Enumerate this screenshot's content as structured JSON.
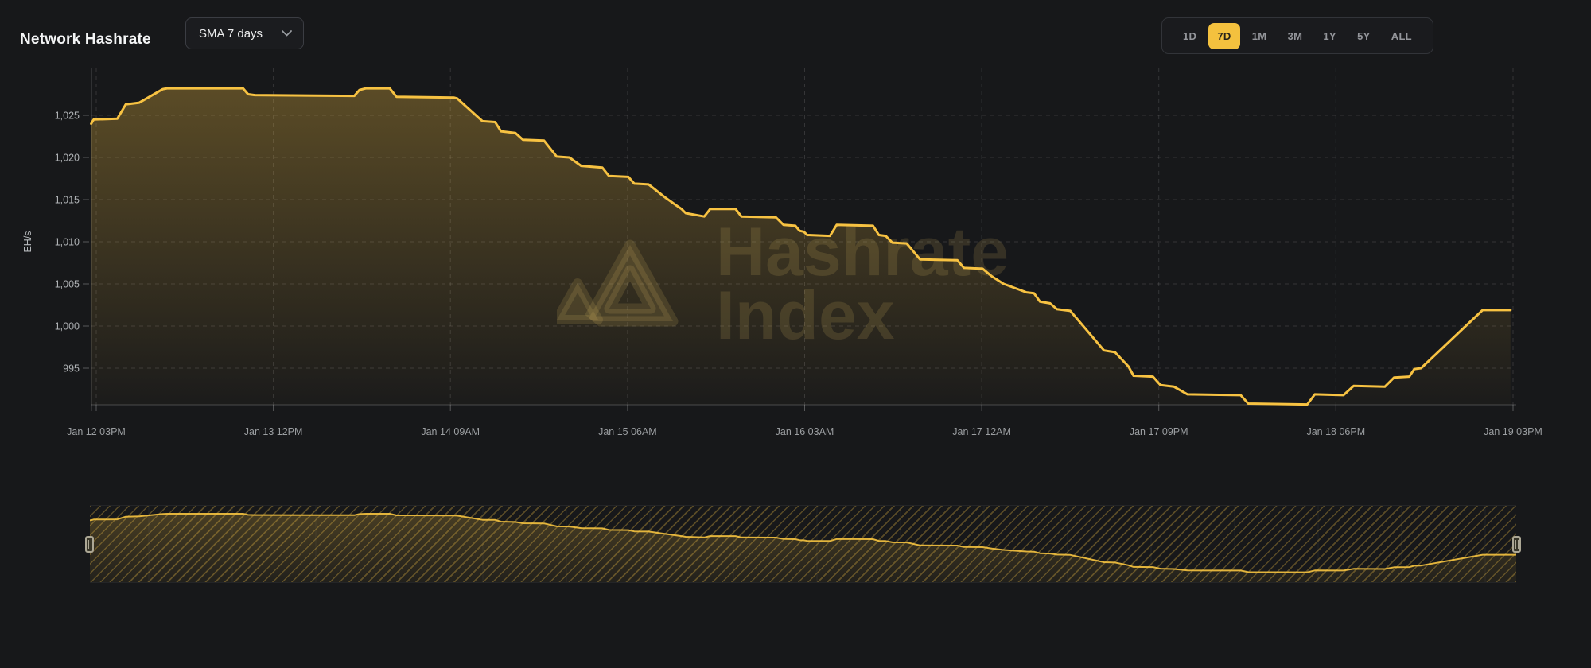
{
  "header": {
    "title": "Network Hashrate"
  },
  "controls": {
    "sma_label": "SMA 7 days",
    "sma_chevron_icon": "chevron-down",
    "ranges": [
      "1D",
      "7D",
      "1M",
      "3M",
      "1Y",
      "5Y",
      "ALL"
    ],
    "active_range": "7D"
  },
  "watermark": {
    "line1": "Hashrate",
    "line2": "Index",
    "logo_icon": "hashrate-index-triangle"
  },
  "colors": {
    "background": "#17181A",
    "accent": "#F4C13E",
    "active_range_text": "#26221A",
    "line": "#F7C242",
    "area_top": "rgba(247,194,66,0.30)",
    "area_bottom": "rgba(247,194,66,0.02)",
    "grid": "rgba(255,255,255,0.13)",
    "axis": "rgba(255,255,255,0.22)",
    "tick": "rgba(255,255,255,0.28)",
    "y_tick_text": "#AFB2B5",
    "x_tick_text": "#9B9EA1",
    "watermark": "rgba(210,176,92,0.17)",
    "nav_line": "#E2B43C",
    "nav_area_top": "rgba(244,193,66,0.22)",
    "nav_area_bottom": "rgba(244,193,66,0.05)",
    "nav_grid": "rgba(255,255,255,0.05)",
    "handle_border": "#ACA795",
    "handle_fill": "#383629"
  },
  "chart_data": {
    "type": "area",
    "title": "Network Hashrate",
    "ylabel": "EH/s",
    "unit": "EH/s",
    "grid": "dashed",
    "legend": false,
    "ylim": [
      990.7,
      1030.7
    ],
    "y_ticks": [
      995,
      1000,
      1005,
      1010,
      1015,
      1020,
      1025
    ],
    "x_ticks": [
      {
        "label": "Jan 12 03PM",
        "t": 0
      },
      {
        "label": "Jan 13 12PM",
        "t": 21
      },
      {
        "label": "Jan 14 09AM",
        "t": 42
      },
      {
        "label": "Jan 15 06AM",
        "t": 63
      },
      {
        "label": "Jan 16 03AM",
        "t": 84
      },
      {
        "label": "Jan 17 12AM",
        "t": 105
      },
      {
        "label": "Jan 17 09PM",
        "t": 126
      },
      {
        "label": "Jan 18 06PM",
        "t": 147
      },
      {
        "label": "Jan 19 03PM",
        "t": 168
      }
    ],
    "series": [
      {
        "name": "Network Hashrate SMA 7 days",
        "points": [
          [
            -0.6,
            1024.0
          ],
          [
            -0.3,
            1024.5
          ],
          [
            2.5,
            1024.6
          ],
          [
            3.5,
            1026.3
          ],
          [
            5.1,
            1026.5
          ],
          [
            7.9,
            1028.1
          ],
          [
            8.4,
            1028.2
          ],
          [
            17.4,
            1028.2
          ],
          [
            18.0,
            1027.5
          ],
          [
            18.8,
            1027.4
          ],
          [
            30.6,
            1027.3
          ],
          [
            31.2,
            1028.0
          ],
          [
            32.0,
            1028.2
          ],
          [
            34.8,
            1028.2
          ],
          [
            35.6,
            1027.2
          ],
          [
            42.4,
            1027.1
          ],
          [
            42.8,
            1027.0
          ],
          [
            45.8,
            1024.3
          ],
          [
            47.3,
            1024.2
          ],
          [
            48.0,
            1023.1
          ],
          [
            49.7,
            1022.9
          ],
          [
            50.6,
            1022.1
          ],
          [
            53.1,
            1022.0
          ],
          [
            54.6,
            1020.1
          ],
          [
            56.1,
            1020.0
          ],
          [
            57.5,
            1019.0
          ],
          [
            60.0,
            1018.8
          ],
          [
            60.8,
            1017.8
          ],
          [
            63.1,
            1017.7
          ],
          [
            63.8,
            1016.9
          ],
          [
            65.5,
            1016.8
          ],
          [
            67.4,
            1015.3
          ],
          [
            68.8,
            1014.3
          ],
          [
            69.4,
            1013.9
          ],
          [
            69.9,
            1013.4
          ],
          [
            72.1,
            1013.0
          ],
          [
            72.8,
            1013.9
          ],
          [
            75.8,
            1013.9
          ],
          [
            76.5,
            1013.0
          ],
          [
            80.6,
            1012.9
          ],
          [
            81.5,
            1012.0
          ],
          [
            82.9,
            1011.9
          ],
          [
            83.4,
            1011.3
          ],
          [
            83.9,
            1011.2
          ],
          [
            84.3,
            1010.8
          ],
          [
            87.0,
            1010.7
          ],
          [
            87.8,
            1012.0
          ],
          [
            92.1,
            1011.9
          ],
          [
            92.8,
            1010.8
          ],
          [
            93.6,
            1010.7
          ],
          [
            94.4,
            1009.9
          ],
          [
            96.1,
            1009.8
          ],
          [
            97.7,
            1007.9
          ],
          [
            102.1,
            1007.8
          ],
          [
            102.9,
            1006.9
          ],
          [
            105.1,
            1006.8
          ],
          [
            106.2,
            1005.9
          ],
          [
            107.6,
            1005.0
          ],
          [
            110.3,
            1004.0
          ],
          [
            111.2,
            1003.9
          ],
          [
            111.9,
            1002.9
          ],
          [
            113.1,
            1002.7
          ],
          [
            113.9,
            1002.0
          ],
          [
            115.5,
            1001.8
          ],
          [
            119.5,
            997.1
          ],
          [
            120.8,
            996.9
          ],
          [
            122.4,
            995.2
          ],
          [
            123.0,
            994.1
          ],
          [
            125.3,
            994.0
          ],
          [
            126.2,
            993.0
          ],
          [
            127.8,
            992.8
          ],
          [
            129.4,
            991.9
          ],
          [
            135.7,
            991.8
          ],
          [
            136.6,
            990.8
          ],
          [
            143.6,
            990.7
          ],
          [
            144.5,
            991.9
          ],
          [
            147.9,
            991.8
          ],
          [
            149.1,
            992.9
          ],
          [
            152.8,
            992.8
          ],
          [
            153.9,
            993.9
          ],
          [
            155.7,
            994.0
          ],
          [
            156.3,
            994.9
          ],
          [
            157.1,
            995.0
          ],
          [
            164.4,
            1001.9
          ],
          [
            167.7,
            1001.9
          ]
        ]
      }
    ]
  }
}
